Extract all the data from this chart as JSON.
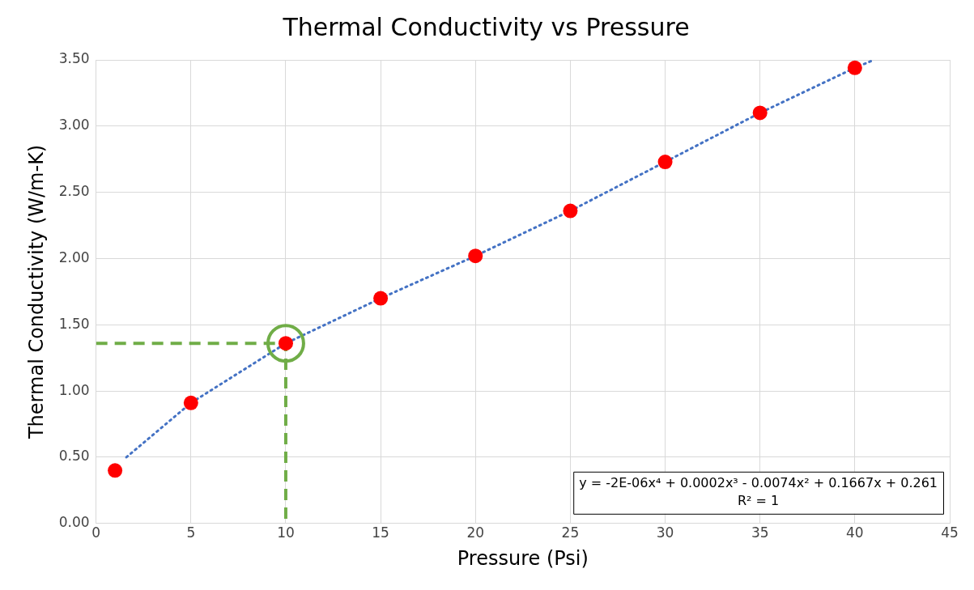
{
  "chart_data": {
    "type": "scatter",
    "title": "Thermal Conductivity vs Pressure",
    "xlabel": "Pressure (Psi)",
    "ylabel": "Thermal Conductivity (W/m-K)",
    "x": [
      1,
      5,
      10,
      15,
      20,
      25,
      30,
      35,
      40
    ],
    "series": [
      {
        "color": "#ff0000",
        "marker": "circle",
        "values": [
          0.4,
          0.91,
          1.36,
          1.7,
          2.02,
          2.36,
          2.73,
          3.1,
          3.44
        ]
      },
      {
        "type": "line",
        "color": "#4472c4",
        "line_style": "dotted",
        "marker": "none",
        "x": [
          1.6,
          5,
          10,
          15,
          20,
          25,
          30,
          35,
          40,
          41
        ],
        "values": [
          0.5,
          0.91,
          1.36,
          1.7,
          2.02,
          2.36,
          2.73,
          3.1,
          3.44,
          3.5
        ]
      },
      {
        "type": "line",
        "color": "#70ad47",
        "line_style": "dashed",
        "marker": "none",
        "x": [
          0,
          10,
          10
        ],
        "values": [
          1.36,
          1.36,
          0
        ]
      }
    ],
    "xlim": [
      0,
      45
    ],
    "xticks": [
      0,
      5,
      10,
      15,
      20,
      25,
      30,
      35,
      40,
      45
    ],
    "ylim": [
      0,
      3.5
    ],
    "yticks": [
      {
        "value": 0,
        "label": "0.00"
      },
      {
        "value": 0.5,
        "label": "0.50"
      },
      {
        "value": 1,
        "label": "1.00"
      },
      {
        "value": 1.5,
        "label": "1.50"
      },
      {
        "value": 2,
        "label": "2.00"
      },
      {
        "value": 2.5,
        "label": "2.50"
      },
      {
        "value": 3,
        "label": "3.00"
      },
      {
        "value": 3.5,
        "label": "3.50"
      }
    ],
    "grid": true,
    "legend": false,
    "annotations": [
      "y = -2E-06x⁴ + 0.0002x³ - 0.0074x² + 0.1667x + 0.261",
      "R² = 1"
    ]
  }
}
